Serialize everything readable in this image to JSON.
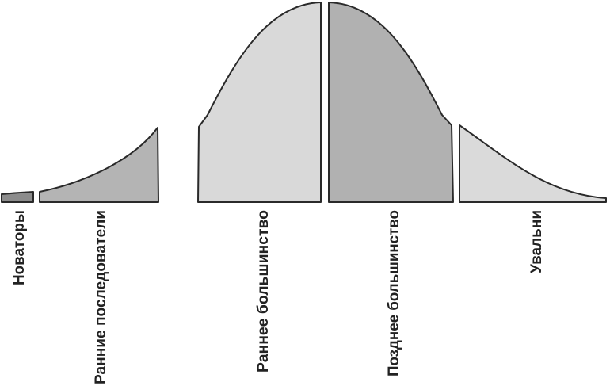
{
  "diagram": {
    "segments": [
      {
        "id": "innovators",
        "label": "Новаторы",
        "color": "#8c8c8c"
      },
      {
        "id": "early-adopters",
        "label": "Ранние последователи",
        "color": "#b4b4b4"
      },
      {
        "id": "early-majority",
        "label": "Раннее большинство",
        "color": "#d9d9d9"
      },
      {
        "id": "late-majority",
        "label": "Позднее большинство",
        "color": "#b1b1b1"
      },
      {
        "id": "laggards",
        "label": "Увальни",
        "color": "#dadada"
      }
    ]
  }
}
